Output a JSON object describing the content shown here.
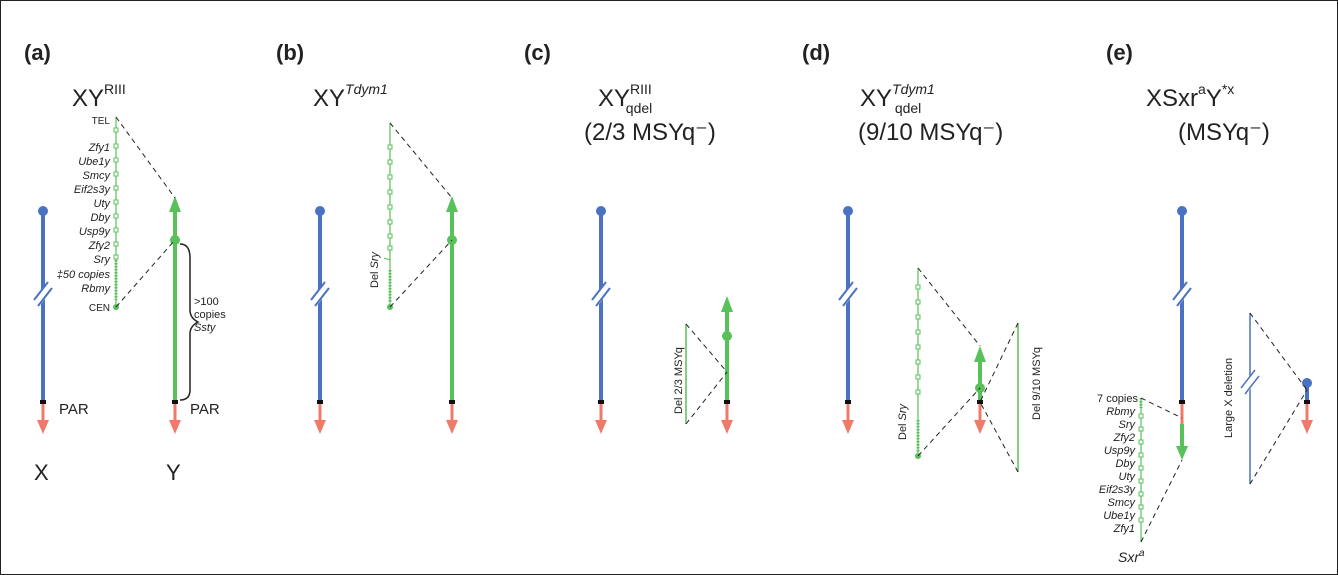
{
  "panels": {
    "a": {
      "label": "(a)",
      "genotype": {
        "base": "XY",
        "sup": "RIII"
      },
      "tel": "TEL",
      "cen": "CEN",
      "genes": [
        "Zfy1",
        "Ube1y",
        "Smcy",
        "Eif2s3y",
        "Uty",
        "Dby",
        "Usp9y",
        "Zfy2",
        "Sry",
        "‡50 copies",
        "Rbmy"
      ],
      "ssty_copies_1": ">100",
      "ssty_copies_2": "copies",
      "ssty_gene": "Ssty",
      "par_x": "PAR",
      "par_y": "PAR",
      "x_label": "X",
      "y_label": "Y"
    },
    "b": {
      "label": "(b)",
      "genotype": {
        "base": "XY",
        "sup": "Tdym1"
      },
      "del_prefix": "Del ",
      "del_gene": "Sry"
    },
    "c": {
      "label": "(c)",
      "genotype": {
        "base": "XY",
        "sup": "RIII",
        "sub": "qdel",
        "line2": "(2/3 MSYq⁻)"
      },
      "deletion": "Del  2/3 MSYq"
    },
    "d": {
      "label": "(d)",
      "genotype": {
        "base": "XY",
        "sup": "Tdym1",
        "sub": "qdel",
        "line2": "(9/10 MSYq⁻)"
      },
      "del_prefix": "Del ",
      "del_gene": "Sry",
      "deletion": "Del 9/10 MSYq"
    },
    "e": {
      "label": "(e)",
      "genotype": {
        "base": "XSxr",
        "sup1": "a",
        "mid": "Y",
        "sup2": "*x",
        "line2": "(MSYq⁻)"
      },
      "copies": "7 copies",
      "genes": [
        "Rbmy",
        "Sry",
        "Zfy2",
        "Usp9y",
        "Dby",
        "Uty",
        "Eif2s3y",
        "Smcy",
        "Ube1y",
        "Zfy1"
      ],
      "sxr": "Sxr",
      "sxr_sup": "a",
      "deletion": "Large X deletion"
    }
  },
  "colors": {
    "x_chromosome": "#4a72c0",
    "y_chromosome": "#59c159",
    "par": "#ef7a6a",
    "dashed": "#222222"
  }
}
